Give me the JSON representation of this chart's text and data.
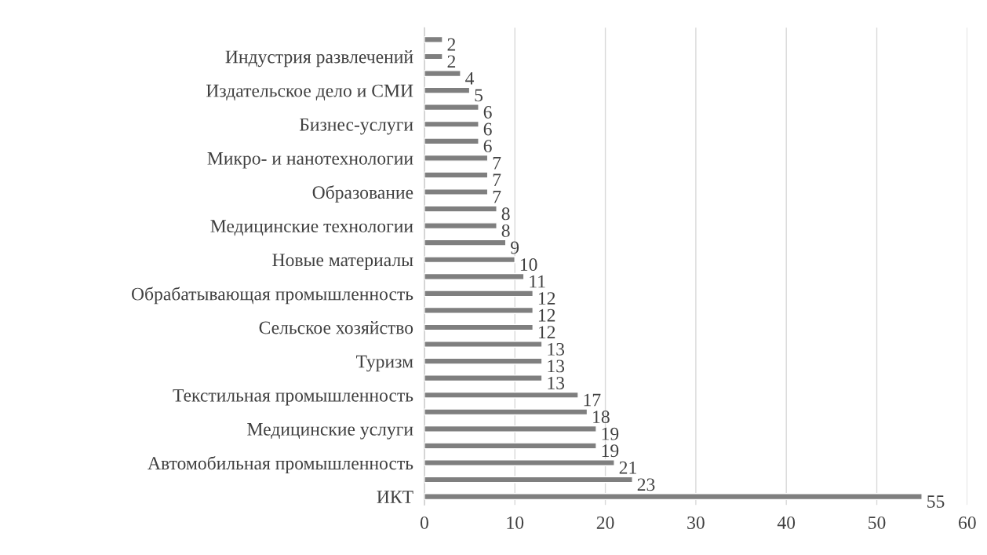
{
  "chart_data": {
    "type": "bar",
    "orientation": "horizontal",
    "categories": [
      null,
      "Индустрия развлечений",
      null,
      "Издательское дело и СМИ",
      null,
      "Бизнес-услуги",
      null,
      "Микро- и нанотехнологии",
      null,
      "Образование",
      null,
      "Медицинские технологии",
      null,
      "Новые материалы",
      null,
      "Обрабатывающая промышленность",
      null,
      "Сельское хозяйство",
      null,
      "Туризм",
      null,
      "Текстильная промышленность",
      null,
      "Медицинские услуги",
      null,
      "Автомобильная промышленность",
      null,
      "ИКТ"
    ],
    "values": [
      2,
      2,
      4,
      5,
      6,
      6,
      6,
      7,
      7,
      7,
      8,
      8,
      9,
      10,
      11,
      12,
      12,
      12,
      13,
      13,
      13,
      17,
      18,
      19,
      19,
      21,
      23,
      55
    ],
    "color": "#7f7f7f",
    "xlim": [
      0,
      60
    ],
    "xticks": [
      0,
      10,
      20,
      30,
      40,
      50,
      60
    ],
    "grid": "x",
    "data_labels": true
  }
}
